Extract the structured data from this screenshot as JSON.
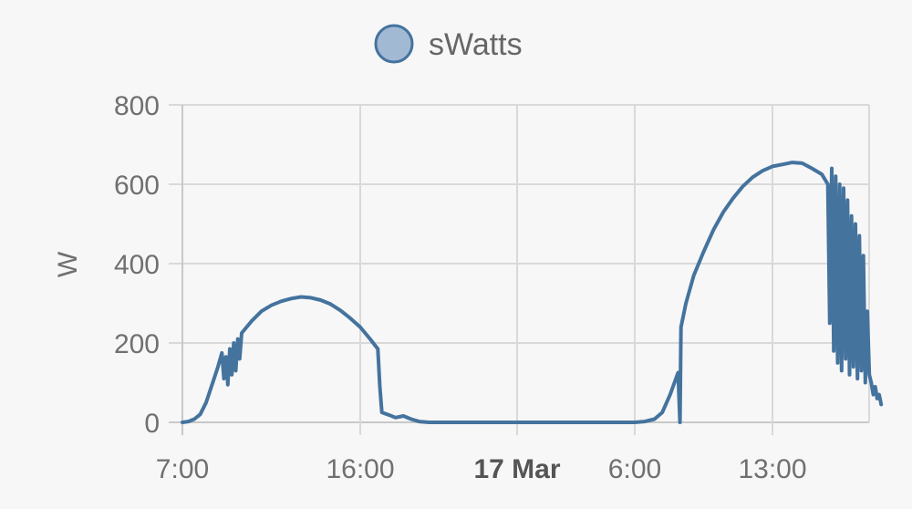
{
  "chart_data": {
    "type": "line",
    "title": "",
    "ylabel": "W",
    "xlabel": "",
    "ylim": [
      0,
      800
    ],
    "xlim_hours": [
      7,
      31.8
    ],
    "grid": true,
    "legend_position": "top",
    "line_color": "#44739e",
    "legend_fill": "#a2b9d3",
    "y_ticks": [
      0,
      200,
      400,
      600,
      800
    ],
    "x_ticks": [
      {
        "label": "7:00",
        "hour": 7,
        "bold": false
      },
      {
        "label": "16:00",
        "hour": 16,
        "bold": false
      },
      {
        "label": "17 Mar",
        "hour": 24,
        "bold": true
      },
      {
        "label": "6:00",
        "hour": 30,
        "bold": false
      },
      {
        "label": "13:00",
        "hour": 37,
        "bold": false
      }
    ],
    "series": [
      {
        "name": "sWatts",
        "x_unit": "hours since 00:00 of day 1",
        "points": [
          [
            7.0,
            0
          ],
          [
            7.3,
            2
          ],
          [
            7.6,
            8
          ],
          [
            7.9,
            20
          ],
          [
            8.2,
            50
          ],
          [
            8.5,
            95
          ],
          [
            8.8,
            140
          ],
          [
            9.0,
            175
          ],
          [
            9.1,
            110
          ],
          [
            9.2,
            165
          ],
          [
            9.3,
            95
          ],
          [
            9.4,
            185
          ],
          [
            9.5,
            120
          ],
          [
            9.6,
            200
          ],
          [
            9.7,
            130
          ],
          [
            9.8,
            210
          ],
          [
            9.9,
            160
          ],
          [
            10.0,
            225
          ],
          [
            10.5,
            255
          ],
          [
            11.0,
            280
          ],
          [
            11.5,
            295
          ],
          [
            12.0,
            305
          ],
          [
            12.5,
            312
          ],
          [
            13.0,
            316
          ],
          [
            13.5,
            314
          ],
          [
            14.0,
            308
          ],
          [
            14.5,
            298
          ],
          [
            15.0,
            282
          ],
          [
            15.5,
            262
          ],
          [
            16.0,
            240
          ],
          [
            16.5,
            210
          ],
          [
            16.9,
            185
          ],
          [
            17.0,
            90
          ],
          [
            17.1,
            25
          ],
          [
            17.5,
            18
          ],
          [
            17.8,
            12
          ],
          [
            18.2,
            16
          ],
          [
            18.6,
            8
          ],
          [
            19.0,
            2
          ],
          [
            19.5,
            0
          ],
          [
            20.0,
            0
          ],
          [
            22.0,
            0
          ],
          [
            24.0,
            0
          ],
          [
            26.0,
            0
          ],
          [
            28.0,
            0
          ],
          [
            30.0,
            0
          ],
          [
            30.5,
            2
          ],
          [
            31.0,
            8
          ],
          [
            31.4,
            25
          ],
          [
            31.8,
            70
          ],
          [
            32.2,
            125
          ],
          [
            32.3,
            0
          ],
          [
            32.35,
            240
          ],
          [
            32.6,
            300
          ],
          [
            33.0,
            370
          ],
          [
            33.5,
            430
          ],
          [
            34.0,
            485
          ],
          [
            34.5,
            530
          ],
          [
            35.0,
            565
          ],
          [
            35.5,
            595
          ],
          [
            36.0,
            618
          ],
          [
            36.5,
            634
          ],
          [
            37.0,
            645
          ],
          [
            37.5,
            650
          ],
          [
            38.0,
            655
          ],
          [
            38.5,
            653
          ],
          [
            39.0,
            640
          ],
          [
            39.5,
            625
          ],
          [
            39.8,
            600
          ],
          [
            39.9,
            250
          ],
          [
            40.0,
            640
          ],
          [
            40.1,
            180
          ],
          [
            40.2,
            620
          ],
          [
            40.3,
            150
          ],
          [
            40.4,
            600
          ],
          [
            40.5,
            130
          ],
          [
            40.6,
            590
          ],
          [
            40.7,
            160
          ],
          [
            40.8,
            560
          ],
          [
            40.9,
            120
          ],
          [
            41.0,
            520
          ],
          [
            41.1,
            140
          ],
          [
            41.2,
            500
          ],
          [
            41.3,
            110
          ],
          [
            41.4,
            470
          ],
          [
            41.5,
            130
          ],
          [
            41.6,
            420
          ],
          [
            41.7,
            100
          ],
          [
            41.8,
            280
          ],
          [
            41.9,
            120
          ],
          [
            42.0,
            100
          ],
          [
            42.1,
            70
          ],
          [
            42.2,
            90
          ],
          [
            42.3,
            60
          ],
          [
            42.4,
            70
          ],
          [
            42.5,
            45
          ]
        ]
      }
    ]
  }
}
